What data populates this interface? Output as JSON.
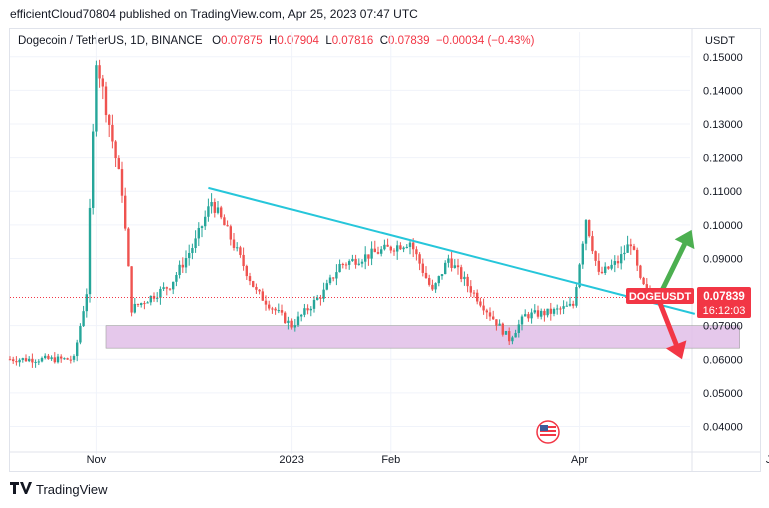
{
  "header": {
    "publisher_line": "efficientCloud70804 published on TradingView.com, Apr 25, 2023 07:47 UTC"
  },
  "legend": {
    "symbol": "Dogecoin / TetherUS, 1D, BINANCE",
    "open_label": "O",
    "open": "0.07875",
    "high_label": "H",
    "high": "0.07904",
    "low_label": "L",
    "low": "0.07816",
    "close_label": "C",
    "close": "0.07839",
    "change": "−0.00034 (−0.43%)",
    "currency": "USDT"
  },
  "price_tag": {
    "symbol": "DOGEUSDT",
    "price": "0.07839",
    "countdown": "16:12:03"
  },
  "footer": {
    "brand": "TradingView"
  },
  "colors": {
    "up": "#26a69a",
    "down": "#ef5350",
    "trendline": "#26c6da",
    "zone_fill": "#e1bee7",
    "arrow_up": "#4caf50",
    "arrow_down": "#f23645",
    "price_line": "#f23645",
    "tag_bg": "#f23645"
  },
  "chart_data": {
    "type": "candlestick",
    "title": "Dogecoin / TetherUS, 1D, BINANCE",
    "ylabel": "USDT",
    "ylim": [
      0.033,
      0.155
    ],
    "yticks": [
      "0.15000",
      "0.14000",
      "0.13000",
      "0.12000",
      "0.11000",
      "0.10000",
      "0.09000",
      "0.07000",
      "0.06000",
      "0.05000",
      "0.04000"
    ],
    "xrange": [
      0,
      206
    ],
    "xticks": [
      {
        "label": "Nov",
        "day": 27
      },
      {
        "label": "2023",
        "day": 88
      },
      {
        "label": "Feb",
        "day": 119
      },
      {
        "label": "Apr",
        "day": 178
      },
      {
        "label": "Jun",
        "day": 239
      }
    ],
    "last_price": 0.07839,
    "key_points": [
      {
        "day": 0,
        "price": 0.06
      },
      {
        "day": 20,
        "price": 0.06
      },
      {
        "day": 24,
        "price": 0.08
      },
      {
        "day": 27,
        "price": 0.15
      },
      {
        "day": 30,
        "price": 0.135
      },
      {
        "day": 35,
        "price": 0.11
      },
      {
        "day": 38,
        "price": 0.075
      },
      {
        "day": 50,
        "price": 0.082
      },
      {
        "day": 58,
        "price": 0.095
      },
      {
        "day": 63,
        "price": 0.107
      },
      {
        "day": 68,
        "price": 0.098
      },
      {
        "day": 77,
        "price": 0.08
      },
      {
        "day": 88,
        "price": 0.07
      },
      {
        "day": 98,
        "price": 0.08
      },
      {
        "day": 103,
        "price": 0.088
      },
      {
        "day": 115,
        "price": 0.092
      },
      {
        "day": 125,
        "price": 0.095
      },
      {
        "day": 132,
        "price": 0.08
      },
      {
        "day": 137,
        "price": 0.09
      },
      {
        "day": 143,
        "price": 0.082
      },
      {
        "day": 156,
        "price": 0.066
      },
      {
        "day": 161,
        "price": 0.073
      },
      {
        "day": 169,
        "price": 0.074
      },
      {
        "day": 176,
        "price": 0.076
      },
      {
        "day": 180,
        "price": 0.102
      },
      {
        "day": 184,
        "price": 0.085
      },
      {
        "day": 190,
        "price": 0.089
      },
      {
        "day": 194,
        "price": 0.095
      },
      {
        "day": 197,
        "price": 0.083
      },
      {
        "day": 200,
        "price": 0.0785
      }
    ],
    "annotations": {
      "trendline": {
        "start": {
          "day": 62,
          "price": 0.111
        },
        "end": {
          "day": 214,
          "price": 0.0735
        }
      },
      "support_zone": {
        "day_start": 30,
        "day_end": 228,
        "price_low": 0.0633,
        "price_high": 0.07
      },
      "arrow_up": {
        "day_start": 203,
        "price_start": 0.079,
        "day_end": 213,
        "price_end": 0.0985
      },
      "arrow_down": {
        "day_start": 203,
        "price_start": 0.077,
        "day_end": 210,
        "price_end": 0.06
      }
    }
  }
}
